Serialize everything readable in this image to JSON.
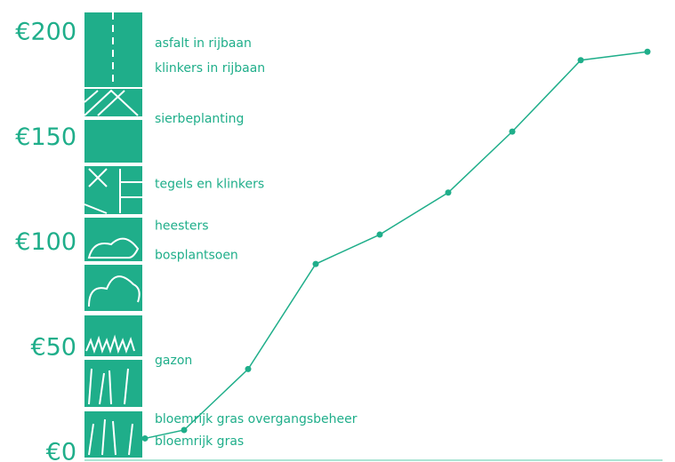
{
  "chart_data": {
    "type": "line",
    "categories": [
      null,
      null,
      null,
      null,
      null,
      null,
      null,
      null,
      null
    ],
    "series": [
      {
        "color": "#1fae8a",
        "values": [
          7,
          11,
          40,
          90,
          104,
          124,
          153,
          187,
          191
        ]
      }
    ],
    "ylim": [
      0,
      200
    ],
    "yticks": [
      {
        "value": 0,
        "label": "€0"
      },
      {
        "value": 50,
        "label": "€50"
      },
      {
        "value": 100,
        "label": "€100"
      },
      {
        "value": 150,
        "label": "€150"
      },
      {
        "value": 200,
        "label": "€200"
      }
    ],
    "annotations": [
      {
        "text": "asfalt in rijbaan",
        "y": 195
      },
      {
        "text": "klinkers in rijbaan",
        "y": 183
      },
      {
        "text": "sierbeplanting",
        "y": 159
      },
      {
        "text": "tegels en klinkers",
        "y": 128
      },
      {
        "text": "heesters",
        "y": 108
      },
      {
        "text": "bosplantsoen",
        "y": 94
      },
      {
        "text": "gazon",
        "y": 44
      },
      {
        "text": "bloemrijk gras overgangsbeheer",
        "y": 16
      },
      {
        "text": "bloemrijk gras",
        "y": 5.5
      }
    ]
  }
}
